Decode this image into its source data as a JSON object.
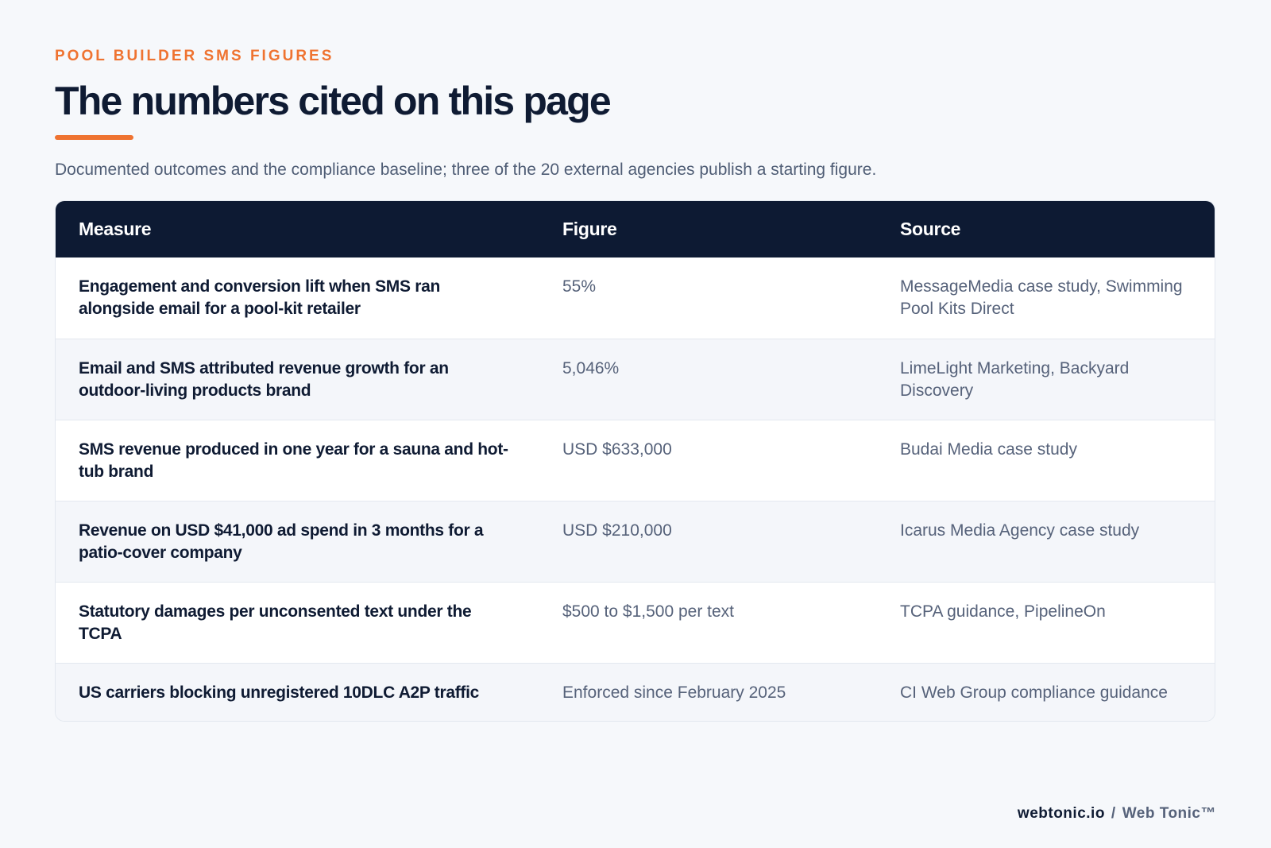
{
  "header": {
    "eyebrow": "POOL BUILDER SMS FIGURES",
    "title": "The numbers cited on this page",
    "subtitle": "Documented outcomes and the compliance baseline; three of the 20 external agencies publish a starting figure."
  },
  "table": {
    "columns": [
      "Measure",
      "Figure",
      "Source"
    ],
    "rows": [
      {
        "measure": "Engagement and conversion lift when SMS ran alongside email for a pool-kit retailer",
        "figure": "55%",
        "source": "MessageMedia case study, Swimming Pool Kits Direct"
      },
      {
        "measure": "Email and SMS attributed revenue growth for an outdoor-living products brand",
        "figure": "5,046%",
        "source": "LimeLight Marketing, Backyard Discovery"
      },
      {
        "measure": "SMS revenue produced in one year for a sauna and hot-tub brand",
        "figure": "USD $633,000",
        "source": "Budai Media case study"
      },
      {
        "measure": "Revenue on USD $41,000 ad spend in 3 months for a patio-cover company",
        "figure": "USD $210,000",
        "source": "Icarus Media Agency case study"
      },
      {
        "measure": "Statutory damages per unconsented text under the TCPA",
        "figure": "$500 to $1,500 per text",
        "source": "TCPA guidance, PipelineOn"
      },
      {
        "measure": "US carriers blocking unregistered 10DLC A2P traffic",
        "figure": "Enforced since February 2025",
        "source": "CI Web Group compliance guidance"
      }
    ]
  },
  "footer": {
    "domain": "webtonic.io",
    "separator": "/",
    "brand": "Web Tonic™"
  },
  "colors": {
    "accent": "#ef7331",
    "header_bg": "#0d1a33",
    "page_bg": "#f6f8fb"
  }
}
